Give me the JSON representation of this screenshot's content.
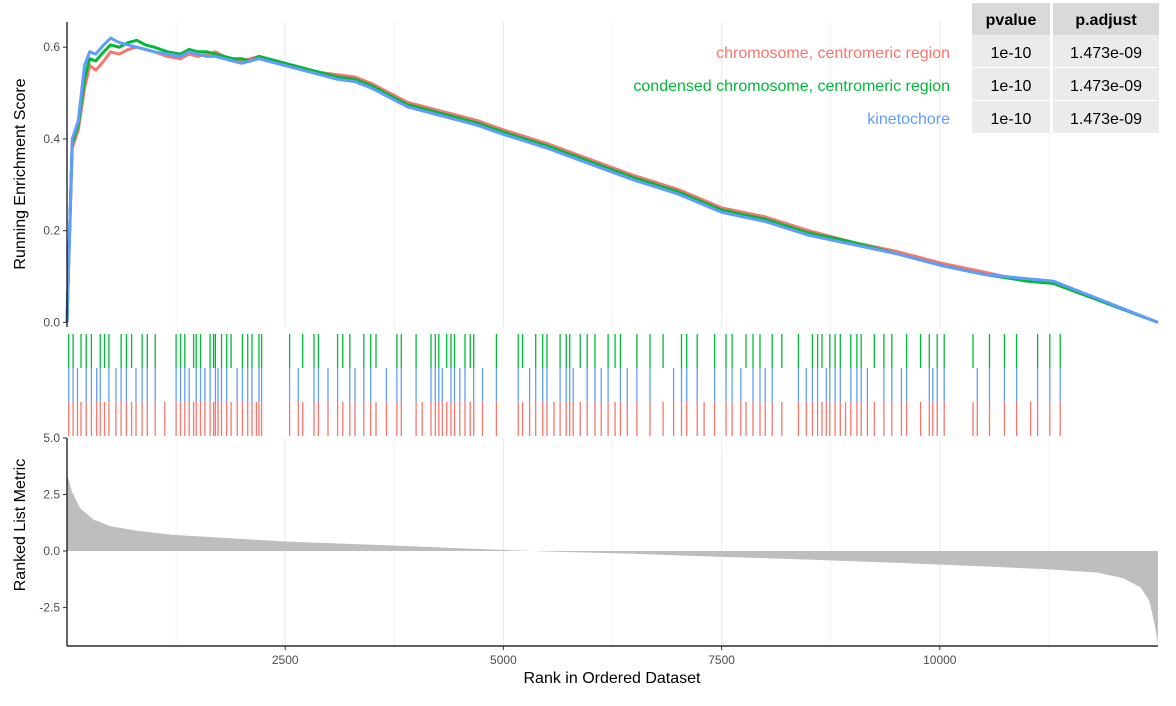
{
  "chart_data": {
    "type": "line",
    "title": "",
    "xlabel": "Rank in Ordered Dataset",
    "ylabel_top": "Running Enrichment Score",
    "ylabel_bottom": "Ranked List Metric",
    "xlim": [
      0,
      12500
    ],
    "x_ticks": [
      2500,
      5000,
      7500,
      10000
    ],
    "x_tick_labels": [
      "2500",
      "5000",
      "7500",
      "10000"
    ],
    "es_ylim": [
      -0.01,
      0.655
    ],
    "es_ticks": [
      0.0,
      0.2,
      0.4,
      0.6
    ],
    "es_tick_labels": [
      "0.0",
      "0.2",
      "0.4",
      "0.6"
    ],
    "metric_ylim": [
      -4.2,
      5.0
    ],
    "metric_ticks": [
      5.0,
      2.5,
      0.0,
      -2.5
    ],
    "metric_tick_labels": [
      "5.0",
      "2.5",
      "0.0",
      "-2.5"
    ],
    "series": [
      {
        "name": "chromosome, centromeric region",
        "color": "#F8766D",
        "x": [
          0,
          60,
          130,
          200,
          260,
          330,
          420,
          500,
          600,
          700,
          800,
          900,
          1000,
          1150,
          1300,
          1400,
          1500,
          1600,
          1700,
          1800,
          1900,
          2000,
          2100,
          2200,
          2300,
          2500,
          2700,
          2900,
          3100,
          3300,
          3500,
          3700,
          3900,
          4100,
          4300,
          4500,
          4700,
          5000,
          5500,
          6000,
          6500,
          7000,
          7500,
          8000,
          8500,
          9000,
          9500,
          10000,
          10500,
          11000,
          11300,
          12500
        ],
        "values": [
          0,
          0.38,
          0.42,
          0.51,
          0.56,
          0.55,
          0.57,
          0.59,
          0.585,
          0.595,
          0.6,
          0.595,
          0.59,
          0.58,
          0.575,
          0.585,
          0.58,
          0.585,
          0.59,
          0.58,
          0.575,
          0.57,
          0.575,
          0.58,
          0.575,
          0.565,
          0.555,
          0.545,
          0.54,
          0.535,
          0.52,
          0.5,
          0.48,
          0.47,
          0.46,
          0.45,
          0.44,
          0.42,
          0.39,
          0.355,
          0.32,
          0.29,
          0.25,
          0.23,
          0.2,
          0.175,
          0.155,
          0.13,
          0.11,
          0.09,
          0.085,
          0.0
        ]
      },
      {
        "name": "condensed chromosome, centromeric region",
        "color": "#00BA38",
        "x": [
          0,
          60,
          130,
          200,
          260,
          330,
          420,
          500,
          600,
          700,
          800,
          900,
          1000,
          1150,
          1300,
          1400,
          1500,
          1600,
          1700,
          1800,
          1900,
          2000,
          2100,
          2200,
          2300,
          2500,
          2700,
          2900,
          3100,
          3300,
          3500,
          3700,
          3900,
          4100,
          4300,
          4500,
          4700,
          5000,
          5500,
          6000,
          6500,
          7000,
          7500,
          8000,
          8500,
          9000,
          9500,
          10000,
          10500,
          11000,
          11300,
          12500
        ],
        "values": [
          0,
          0.39,
          0.43,
          0.53,
          0.575,
          0.57,
          0.59,
          0.605,
          0.6,
          0.61,
          0.615,
          0.605,
          0.6,
          0.59,
          0.585,
          0.595,
          0.59,
          0.59,
          0.585,
          0.58,
          0.575,
          0.575,
          0.57,
          0.58,
          0.575,
          0.565,
          0.555,
          0.545,
          0.535,
          0.53,
          0.515,
          0.495,
          0.475,
          0.465,
          0.455,
          0.445,
          0.435,
          0.415,
          0.385,
          0.35,
          0.315,
          0.285,
          0.245,
          0.225,
          0.195,
          0.175,
          0.15,
          0.125,
          0.105,
          0.09,
          0.085,
          0.0
        ]
      },
      {
        "name": "kinetochore",
        "color": "#619CFF",
        "x": [
          0,
          60,
          130,
          200,
          260,
          330,
          420,
          500,
          600,
          700,
          800,
          900,
          1000,
          1150,
          1300,
          1400,
          1500,
          1600,
          1700,
          1800,
          1900,
          2000,
          2100,
          2200,
          2300,
          2500,
          2700,
          2900,
          3100,
          3300,
          3500,
          3700,
          3900,
          4100,
          4300,
          4500,
          4700,
          5000,
          5500,
          6000,
          6500,
          7000,
          7500,
          8000,
          8500,
          9000,
          9500,
          10000,
          10500,
          11000,
          11300,
          12500
        ],
        "values": [
          0,
          0.4,
          0.44,
          0.56,
          0.59,
          0.585,
          0.605,
          0.62,
          0.61,
          0.605,
          0.6,
          0.595,
          0.59,
          0.585,
          0.58,
          0.59,
          0.585,
          0.58,
          0.58,
          0.575,
          0.57,
          0.565,
          0.57,
          0.575,
          0.57,
          0.56,
          0.55,
          0.54,
          0.53,
          0.525,
          0.51,
          0.49,
          0.47,
          0.46,
          0.45,
          0.44,
          0.43,
          0.41,
          0.38,
          0.345,
          0.31,
          0.28,
          0.24,
          0.22,
          0.19,
          0.17,
          0.15,
          0.125,
          0.105,
          0.095,
          0.09,
          0.0
        ]
      }
    ],
    "hits": {
      "chromosome, centromeric region": [
        20,
        70,
        120,
        160,
        220,
        280,
        340,
        380,
        430,
        480,
        560,
        620,
        680,
        740,
        790,
        860,
        920,
        1010,
        1120,
        1250,
        1300,
        1350,
        1400,
        1450,
        1480,
        1530,
        1580,
        1640,
        1680,
        1700,
        1730,
        1770,
        1830,
        1880,
        1950,
        2010,
        2070,
        2120,
        2170,
        2200,
        2230,
        2550,
        2650,
        2700,
        2830,
        2880,
        2990,
        3100,
        3160,
        3240,
        3300,
        3400,
        3480,
        3540,
        3660,
        3780,
        3830,
        4000,
        4070,
        4170,
        4220,
        4260,
        4300,
        4350,
        4400,
        4440,
        4500,
        4560,
        4620,
        4660,
        4760,
        4920,
        5170,
        5220,
        5300,
        5370,
        5450,
        5500,
        5580,
        5650,
        5720,
        5760,
        5800,
        5880,
        5960,
        6050,
        6120,
        6200,
        6280,
        6340,
        6420,
        6530,
        6680,
        6830,
        6950,
        7040,
        7100,
        7220,
        7300,
        7420,
        7550,
        7620,
        7720,
        7780,
        7860,
        7940,
        8000,
        8080,
        8190,
        8380,
        8470,
        8540,
        8600,
        8650,
        8700,
        8740,
        8800,
        8860,
        8920,
        8980,
        9050,
        9100,
        9170,
        9250,
        9360,
        9450,
        9560,
        9620,
        9780,
        9880,
        9920,
        9970,
        10050,
        10380,
        10430,
        10570,
        10740,
        10880,
        11040,
        11120,
        11260,
        11380
      ]
    },
    "metric_profile": {
      "x": [
        0,
        60,
        150,
        300,
        500,
        800,
        1200,
        1800,
        2500,
        3500,
        4500,
        5000,
        5500,
        6500,
        7500,
        8500,
        9500,
        10500,
        11200,
        11800,
        12100,
        12300,
        12400,
        12460,
        12500
      ],
      "values": [
        3.4,
        2.6,
        1.9,
        1.4,
        1.1,
        0.9,
        0.72,
        0.58,
        0.42,
        0.28,
        0.12,
        0.05,
        -0.02,
        -0.12,
        -0.26,
        -0.38,
        -0.52,
        -0.68,
        -0.8,
        -0.95,
        -1.2,
        -1.6,
        -2.2,
        -3.2,
        -4.1
      ]
    },
    "metric_fill_color": "#BEBEBE",
    "table": {
      "headers": [
        "pvalue",
        "p.adjust"
      ],
      "rows": [
        {
          "description": "chromosome, centromeric region",
          "pvalue": "1e-10",
          "p_adjust": "1.473e-09"
        },
        {
          "description": "condensed chromosome, centromeric region",
          "pvalue": "1e-10",
          "p_adjust": "1.473e-09"
        },
        {
          "description": "kinetochore",
          "pvalue": "1e-10",
          "p_adjust": "1.473e-09"
        }
      ]
    }
  }
}
